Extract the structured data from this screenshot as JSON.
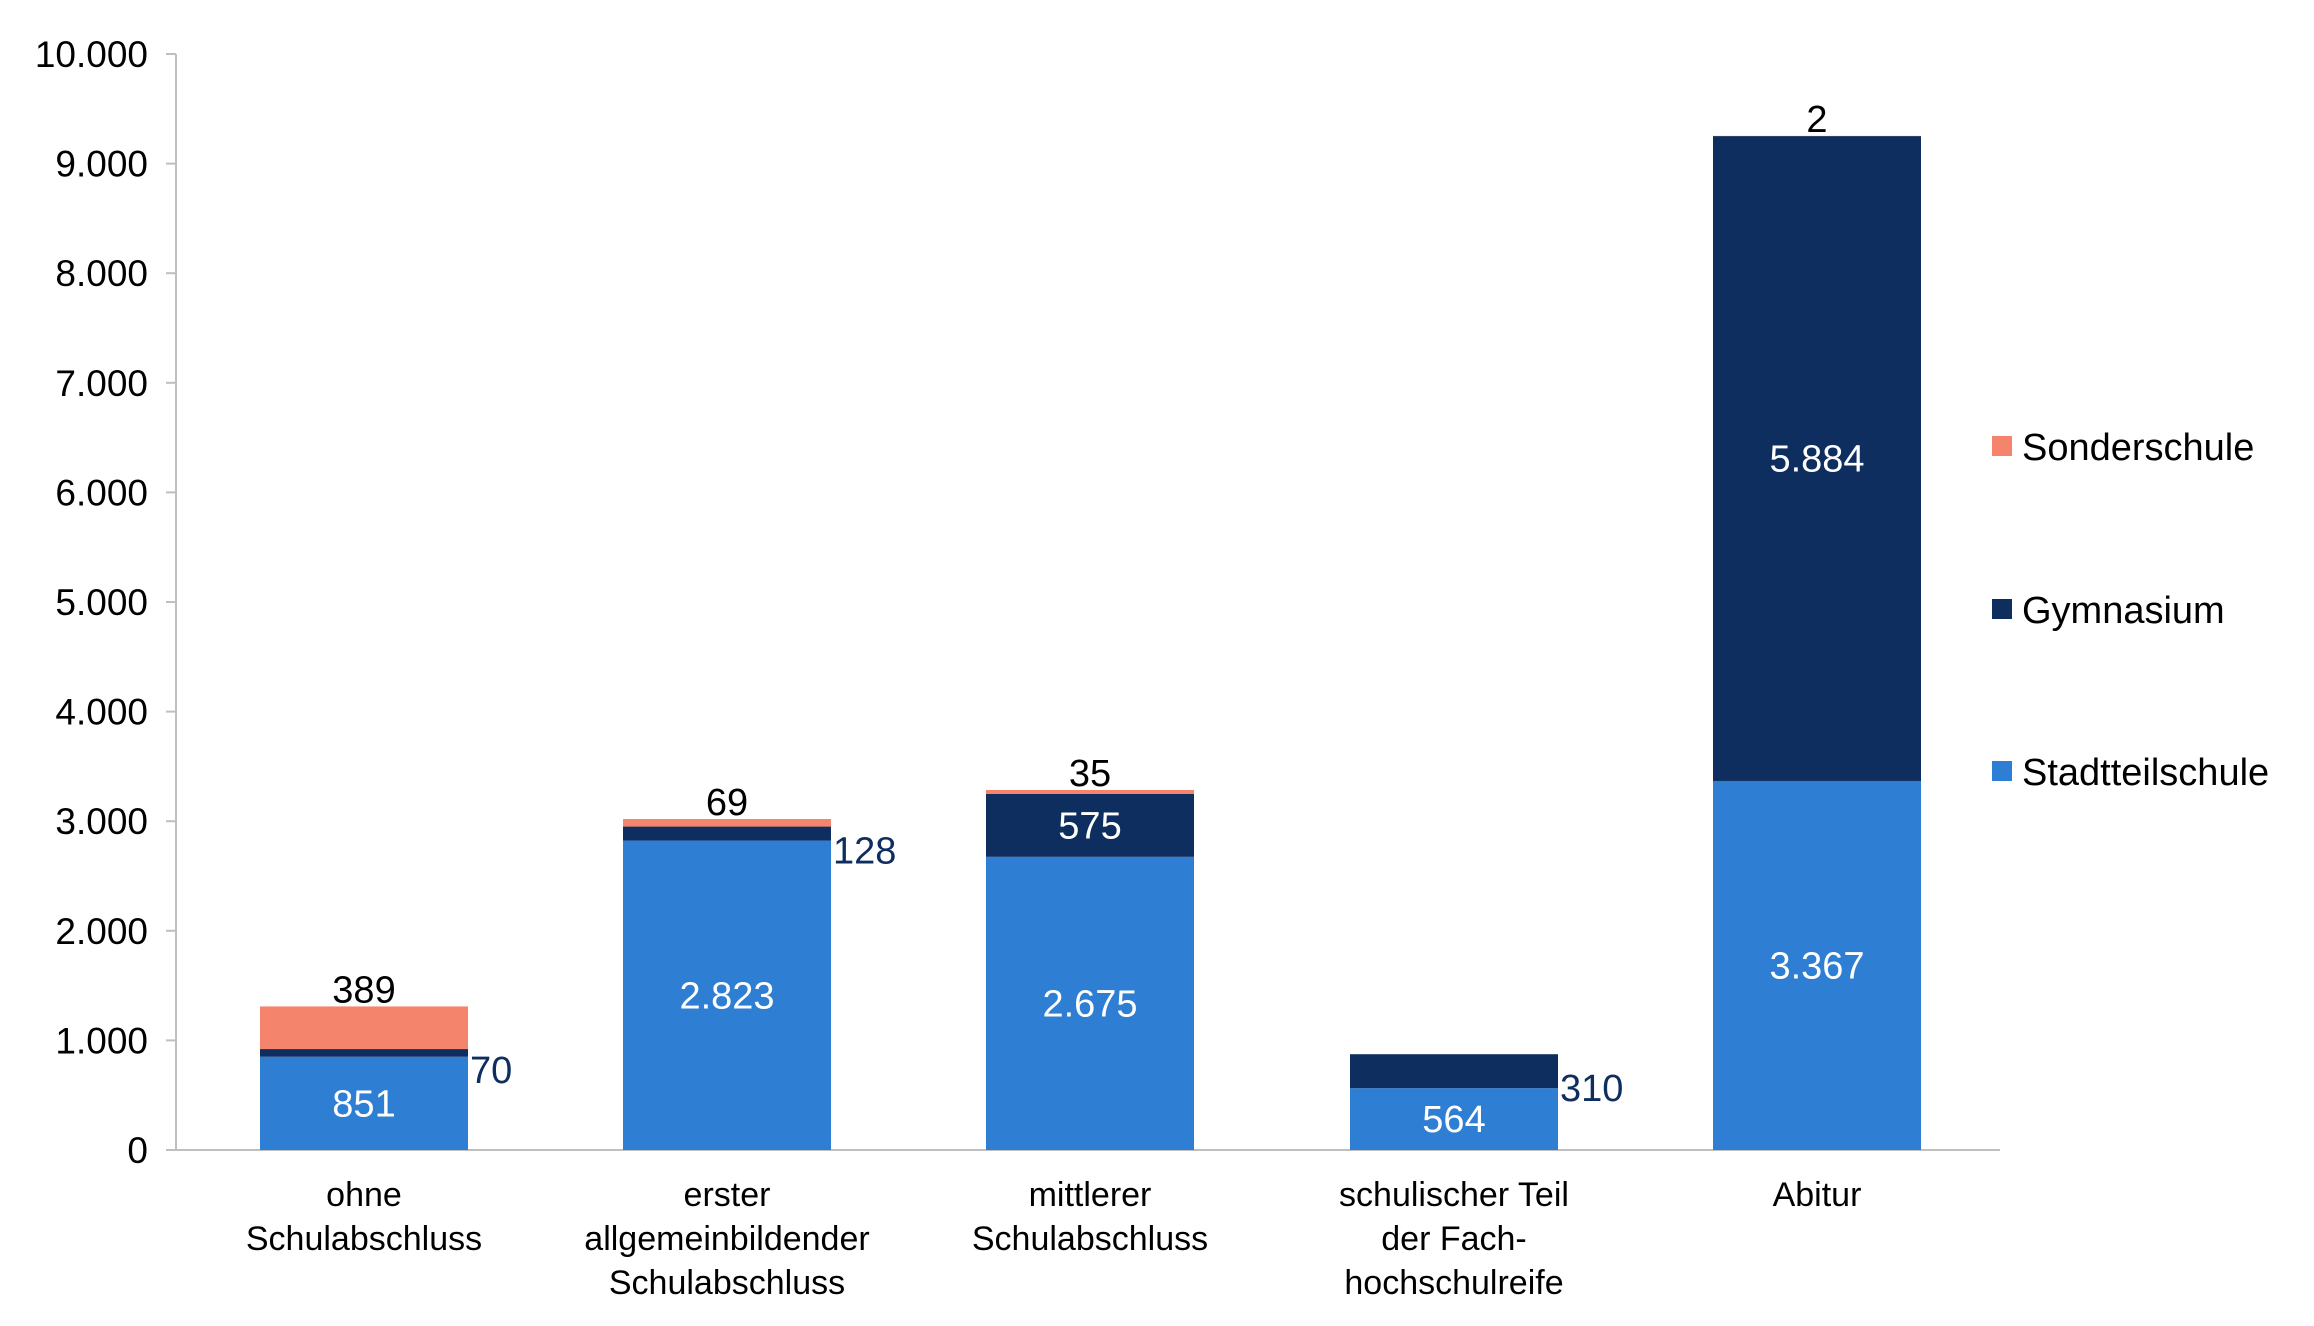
{
  "chart_data": {
    "type": "bar",
    "stacked": true,
    "title": "",
    "xlabel": "",
    "ylabel": "",
    "ylim": [
      0,
      10000
    ],
    "yticks": [
      0,
      1000,
      2000,
      3000,
      4000,
      5000,
      6000,
      7000,
      8000,
      9000,
      10000
    ],
    "ytick_labels": [
      "0",
      "1.000",
      "2.000",
      "3.000",
      "4.000",
      "5.000",
      "6.000",
      "7.000",
      "8.000",
      "9.000",
      "10.000"
    ],
    "grid": false,
    "legend_position": "right",
    "categories": [
      [
        "ohne",
        "Schulabschluss"
      ],
      [
        "erster",
        "allgemeinbildender",
        "Schulabschluss"
      ],
      [
        "mittlerer",
        "Schulabschluss"
      ],
      [
        "schulischer Teil",
        "der Fach-",
        "hochschulreife"
      ],
      [
        "Abitur"
      ]
    ],
    "series": [
      {
        "name": "Stadtteilschule",
        "color": "#2E7FD3",
        "values": [
          851,
          2823,
          2675,
          564,
          3367
        ],
        "labels": [
          "851",
          "2.823",
          "2.675",
          "564",
          "3.367"
        ]
      },
      {
        "name": "Gymnasium",
        "color": "#0D2E5E",
        "values": [
          70,
          128,
          575,
          310,
          5884
        ],
        "labels": [
          "70",
          "128",
          "575",
          "310",
          "5.884"
        ]
      },
      {
        "name": "Sonderschule",
        "color": "#F4846B",
        "values": [
          389,
          69,
          35,
          0,
          2
        ],
        "labels": [
          "389",
          "69",
          "35",
          "",
          "2"
        ]
      }
    ],
    "legend_order": [
      "Sonderschule",
      "Gymnasium",
      "Stadtteilschule"
    ]
  }
}
